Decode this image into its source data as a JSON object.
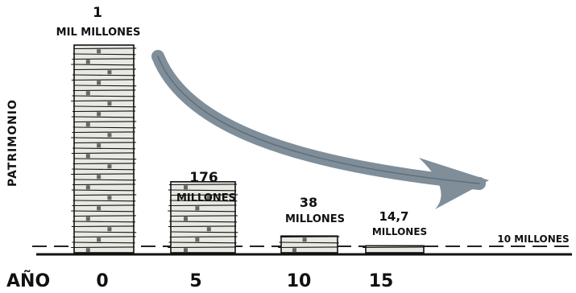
{
  "chart_data": {
    "type": "bar",
    "title": "",
    "xlabel": "AÑO",
    "ylabel": "PATRIMONIO",
    "categories": [
      "0",
      "5",
      "10",
      "15"
    ],
    "values": [
      1000000000,
      176000000,
      38000000,
      14700000
    ],
    "value_labels": [
      [
        "1",
        "MIL MILLONES"
      ],
      [
        "176",
        "MILLONES"
      ],
      [
        "38",
        "MILLONES"
      ],
      [
        "14,7",
        "MILLONES"
      ]
    ],
    "reference_line": {
      "value": 10000000,
      "label": "10 MILLONES",
      "style": "dashed"
    },
    "annotations": [
      {
        "type": "arrow",
        "meaning": "declining wealth"
      }
    ],
    "colors": {
      "ink": "#111111",
      "arrow": "#7f8e99",
      "money": "#e9e9e4"
    },
    "grid": false
  }
}
